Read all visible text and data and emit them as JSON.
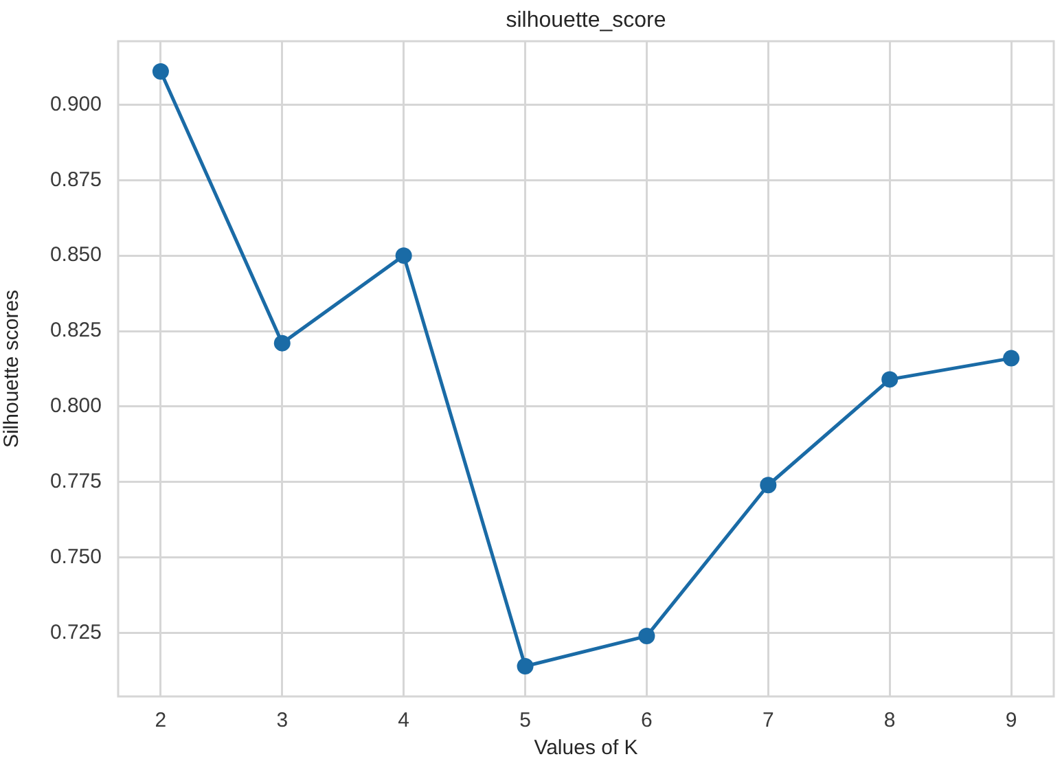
{
  "chart_data": {
    "type": "line",
    "title": "silhouette_score",
    "xlabel": "Values of K",
    "ylabel": "Silhouette scores",
    "x": [
      2,
      3,
      4,
      5,
      6,
      7,
      8,
      9
    ],
    "values": [
      0.911,
      0.821,
      0.85,
      0.714,
      0.724,
      0.774,
      0.809,
      0.816
    ],
    "color": "#1a6ba6",
    "xlim": [
      1.65,
      9.35
    ],
    "xticks": [
      2,
      3,
      4,
      5,
      6,
      7,
      8,
      9
    ],
    "ylim": [
      0.704,
      0.921
    ],
    "yticks": [
      {
        "value": 0.725,
        "label": "0.725"
      },
      {
        "value": 0.75,
        "label": "0.750"
      },
      {
        "value": 0.775,
        "label": "0.775"
      },
      {
        "value": 0.8,
        "label": "0.800"
      },
      {
        "value": 0.825,
        "label": "0.825"
      },
      {
        "value": 0.85,
        "label": "0.850"
      },
      {
        "value": 0.875,
        "label": "0.875"
      },
      {
        "value": 0.9,
        "label": "0.900"
      }
    ],
    "grid": true,
    "marker": "circle",
    "line_style": "solid"
  }
}
